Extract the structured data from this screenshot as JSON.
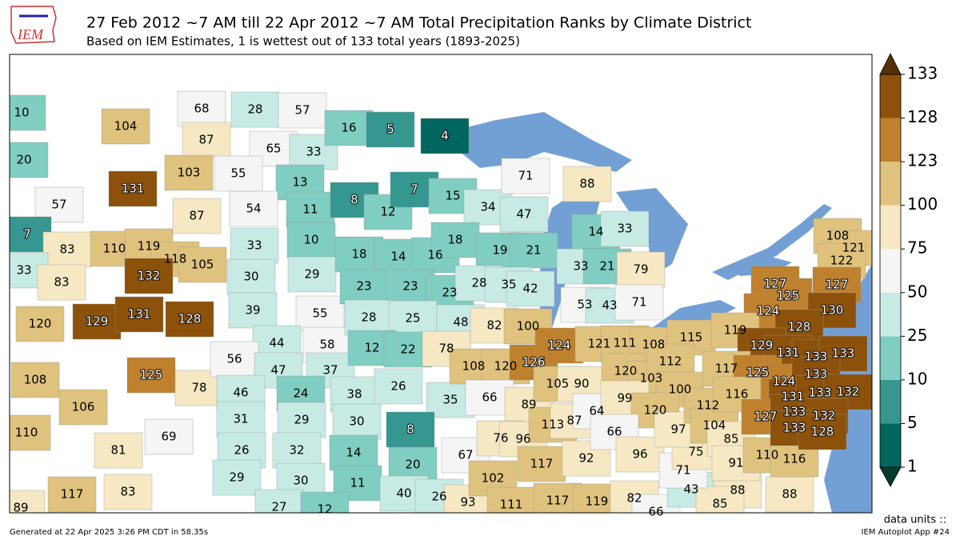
{
  "logo": {
    "text": "IEM"
  },
  "header": {
    "title": "27 Feb 2012 ~7 AM till 22 Apr 2012 ~7 AM Total Precipitation Ranks by Climate District",
    "subtitle": "Based on IEM Estimates, 1 is wettest out of 133 total years (1893-2025)"
  },
  "colorbar": {
    "ticks": [
      1,
      5,
      10,
      25,
      50,
      75,
      100,
      123,
      128,
      133
    ],
    "colors": [
      "#01665e",
      "#35978f",
      "#80cdc1",
      "#c7eae5",
      "#f5f5f5",
      "#f6e8c3",
      "#dfc27d",
      "#bf812d",
      "#8c510a"
    ],
    "under_color": "#003c30",
    "over_color": "#543005",
    "units_label": "data units ::"
  },
  "districts": {
    "values": [
      10,
      104,
      20,
      131,
      57,
      7,
      83,
      110,
      119,
      118,
      105,
      33,
      83,
      132,
      120,
      129,
      131,
      128,
      108,
      125,
      78,
      106,
      110,
      69,
      81,
      89,
      117,
      83,
      68,
      28,
      57,
      87,
      65,
      33,
      103,
      55,
      13,
      87,
      54,
      11,
      33,
      10,
      30,
      29,
      39,
      55,
      44,
      58,
      56,
      47,
      37,
      46,
      24,
      38,
      31,
      29,
      30,
      26,
      32,
      14,
      29,
      30,
      11,
      27,
      12,
      16,
      5,
      4,
      8,
      12,
      7,
      18,
      14,
      16,
      23,
      23,
      23,
      28,
      25,
      48,
      12,
      22,
      78,
      26,
      35,
      8,
      67,
      20,
      40,
      26,
      93,
      102,
      111,
      117,
      119,
      82,
      66,
      43,
      88,
      88,
      85,
      15,
      34,
      47,
      18,
      19,
      21,
      28,
      35,
      42,
      71,
      88,
      14,
      33,
      33,
      21,
      79,
      53,
      43,
      71,
      82,
      100,
      108,
      120,
      126,
      66,
      89,
      76,
      96,
      124,
      121,
      105,
      90,
      113,
      87,
      64,
      111,
      108,
      115,
      120,
      103,
      112,
      100,
      99,
      120,
      117,
      92,
      66,
      96,
      71,
      75,
      97,
      112,
      104,
      85,
      91,
      110,
      116,
      108,
      121,
      122,
      127,
      125,
      127,
      124,
      130,
      119,
      128,
      129,
      131,
      133,
      133,
      117,
      125,
      124,
      133,
      116,
      131,
      133,
      132,
      127,
      133,
      132,
      133,
      128
    ]
  },
  "footer": {
    "generated": "Generated at 22 Apr 2025 3:26 PM CDT in 58.35s",
    "app": "IEM Autoplot App #24"
  }
}
